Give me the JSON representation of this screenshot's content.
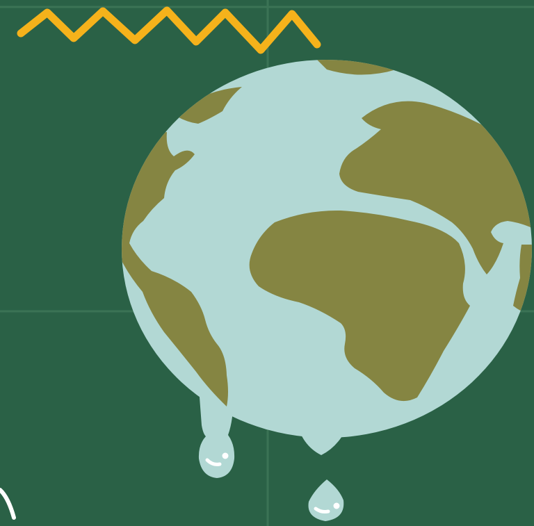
{
  "scene": {
    "subject": "melting-earth-illustration",
    "colors": {
      "background": "#2a6146",
      "grid": "#3b7355",
      "ocean": "#b2d8d4",
      "land": "#858542",
      "zigzag": "#f5b21b",
      "highlight": "#ffffff"
    },
    "icons": [
      "zigzag-icon",
      "globe-icon",
      "drip-icon",
      "droplet-icon"
    ]
  }
}
